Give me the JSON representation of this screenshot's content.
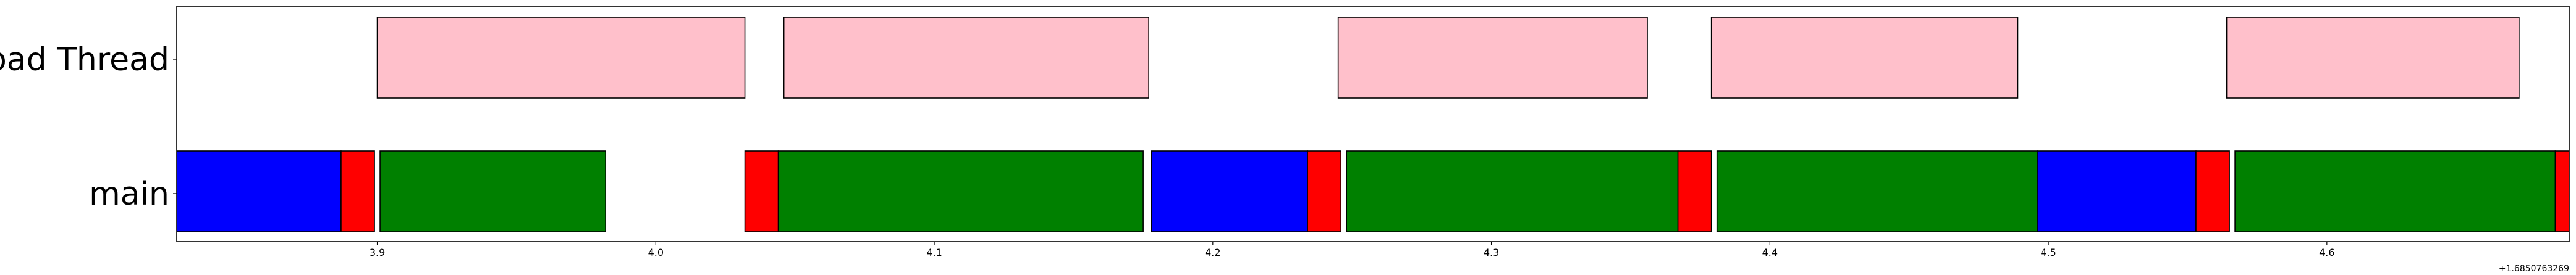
{
  "chart_data": {
    "type": "gantt",
    "title": "",
    "xlabel": "",
    "ylabel": "",
    "x_offset_label": "+1.6850763269",
    "xlim": [
      3.828,
      4.687
    ],
    "x_ticks": [
      {
        "value": 3.9,
        "label": "3.9"
      },
      {
        "value": 4.0,
        "label": "4.0"
      },
      {
        "value": 4.1,
        "label": "4.1"
      },
      {
        "value": 4.2,
        "label": "4.2"
      },
      {
        "value": 4.3,
        "label": "4.3"
      },
      {
        "value": 4.4,
        "label": "4.4"
      },
      {
        "value": 4.5,
        "label": "4.5"
      },
      {
        "value": 4.6,
        "label": "4.6"
      }
    ],
    "categories": [
      "load Thread",
      "main"
    ],
    "colors": {
      "blue": "#0000ff",
      "red": "#ff0000",
      "green": "#008000",
      "pink": "#ffc0cb",
      "edge": "#000000"
    },
    "series": [
      {
        "row": "load Thread",
        "intervals": [
          {
            "start": 3.9,
            "end": 4.032,
            "color": "pink"
          },
          {
            "start": 4.046,
            "end": 4.177,
            "color": "pink"
          },
          {
            "start": 4.245,
            "end": 4.356,
            "color": "pink"
          },
          {
            "start": 4.379,
            "end": 4.489,
            "color": "pink"
          },
          {
            "start": 4.564,
            "end": 4.669,
            "color": "pink"
          }
        ]
      },
      {
        "row": "main",
        "intervals": [
          {
            "start": 3.828,
            "end": 3.887,
            "color": "blue"
          },
          {
            "start": 3.887,
            "end": 3.899,
            "color": "red"
          },
          {
            "start": 3.901,
            "end": 3.982,
            "color": "green"
          },
          {
            "start": 4.032,
            "end": 4.044,
            "color": "red"
          },
          {
            "start": 4.044,
            "end": 4.175,
            "color": "green"
          },
          {
            "start": 4.178,
            "end": 4.234,
            "color": "blue"
          },
          {
            "start": 4.234,
            "end": 4.246,
            "color": "red"
          },
          {
            "start": 4.248,
            "end": 4.367,
            "color": "green"
          },
          {
            "start": 4.367,
            "end": 4.379,
            "color": "red"
          },
          {
            "start": 4.381,
            "end": 4.496,
            "color": "green"
          },
          {
            "start": 4.496,
            "end": 4.553,
            "color": "blue"
          },
          {
            "start": 4.553,
            "end": 4.565,
            "color": "red"
          },
          {
            "start": 4.567,
            "end": 4.682,
            "color": "green"
          },
          {
            "start": 4.682,
            "end": 4.694,
            "color": "red"
          }
        ]
      }
    ]
  }
}
